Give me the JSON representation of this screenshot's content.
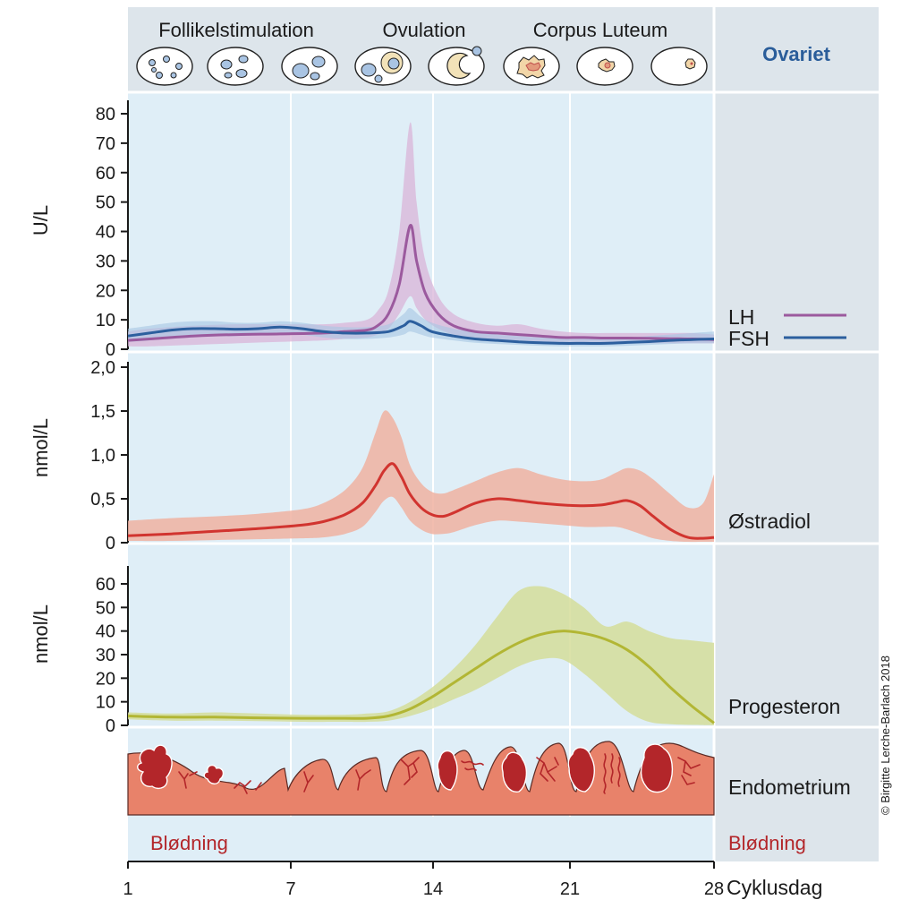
{
  "header": {
    "phases": [
      "Follikelstimulation",
      "Ovulation",
      "Corpus Luteum"
    ],
    "ovary_label": "Ovariet"
  },
  "colors": {
    "plot_bg": "#dfeef7",
    "side_bg": "#dde5eb",
    "lh": "#9b5a9e",
    "lh_band": "#d9b4d8",
    "fsh": "#2c5f9e",
    "fsh_band": "#a7c6e2",
    "estradiol": "#d1342f",
    "estradiol_band": "#f0b1a1",
    "progesterone": "#b2b634",
    "progesterone_band": "#d5dd9a",
    "endometrium": "#e8826a",
    "vessel": "#b3262a",
    "bleeding_text": "#b3262a",
    "ovary_text": "#2a5d9a"
  },
  "chart_data": [
    {
      "type": "line",
      "ylabel": "U/L",
      "ylim": [
        0,
        80
      ],
      "yticks": [
        "0",
        "10",
        "20",
        "30",
        "40",
        "50",
        "60",
        "70",
        "80"
      ],
      "xlim": [
        1,
        28
      ],
      "series": [
        {
          "name": "LH",
          "x": [
            1,
            2,
            4,
            6,
            8,
            10,
            11,
            12,
            12.5,
            13,
            13.5,
            14,
            14.3,
            14.7,
            15.3,
            16,
            17,
            18,
            19,
            20,
            21,
            22,
            23,
            24,
            25,
            26,
            27,
            28
          ],
          "y": [
            3,
            3.5,
            4.5,
            5,
            5.2,
            5.5,
            6,
            6.5,
            8,
            12,
            22,
            42,
            30,
            19,
            12,
            8,
            6,
            5.5,
            5,
            4.5,
            4,
            4,
            3.8,
            3.8,
            3.7,
            3.6,
            3.5,
            3.3
          ],
          "band_upper": [
            6,
            7,
            8,
            8.5,
            8.5,
            8.5,
            9,
            10,
            13,
            20,
            40,
            77,
            50,
            30,
            18,
            12,
            9,
            8,
            8.5,
            7,
            6,
            5.5,
            5.5,
            5.5,
            5.5,
            5.5,
            5.5,
            5
          ],
          "band_lower": [
            1,
            1,
            1.5,
            2,
            2.5,
            3,
            3.5,
            4,
            5,
            7,
            12,
            18,
            14,
            10,
            7,
            5,
            4,
            3,
            3,
            2.5,
            2,
            2,
            2,
            2,
            2,
            2,
            2,
            2
          ]
        },
        {
          "name": "FSH",
          "x": [
            1,
            2,
            3,
            4,
            5,
            6,
            7,
            8,
            9,
            10,
            11,
            12,
            13,
            13.7,
            14,
            14.5,
            15,
            16,
            17,
            18,
            19,
            20,
            21,
            22,
            23,
            24,
            25,
            26,
            27,
            28
          ],
          "y": [
            4.5,
            5.5,
            6.5,
            7,
            7,
            6.8,
            7,
            7.5,
            7,
            6,
            5.5,
            5.5,
            6,
            8,
            9.5,
            8,
            6,
            4.5,
            3.5,
            3,
            2.5,
            2.2,
            2,
            2,
            2,
            2.3,
            2.6,
            3,
            3.3,
            3.5
          ],
          "band_upper": [
            7,
            8,
            9,
            9.5,
            9.5,
            9,
            9,
            9.5,
            9,
            8,
            7.5,
            7.5,
            8.5,
            12,
            14,
            11,
            9,
            7,
            6,
            5,
            4.5,
            4,
            4,
            4,
            4,
            4,
            4.5,
            5,
            5.5,
            6
          ],
          "band_lower": [
            2.5,
            3,
            4,
            4.5,
            4.5,
            4.5,
            5,
            5.5,
            5,
            4,
            3.5,
            3.5,
            4,
            5,
            6,
            5,
            4,
            3,
            2.2,
            1.8,
            1.5,
            1.2,
            1,
            1,
            1,
            1.2,
            1.5,
            1.8,
            2,
            2
          ]
        }
      ]
    },
    {
      "type": "line",
      "ylabel": "nmol/L",
      "ylim": [
        0,
        2.2
      ],
      "yticks": [
        "0",
        "0,5",
        "1,0",
        "1,5",
        "2,0"
      ],
      "xlim": [
        1,
        28
      ],
      "series": [
        {
          "name": "Østradiol",
          "x": [
            1,
            3,
            5,
            7,
            9,
            10,
            11,
            11.8,
            12.4,
            12.8,
            13.2,
            13.6,
            14,
            14.5,
            15,
            15.5,
            16,
            17,
            18,
            19,
            20,
            21,
            22,
            22.8,
            23.5,
            24,
            24.6,
            25.2,
            26,
            26.8,
            27.5,
            28
          ],
          "y": [
            0.08,
            0.1,
            0.13,
            0.16,
            0.2,
            0.24,
            0.32,
            0.45,
            0.65,
            0.82,
            0.9,
            0.75,
            0.55,
            0.4,
            0.32,
            0.3,
            0.34,
            0.45,
            0.5,
            0.48,
            0.45,
            0.43,
            0.42,
            0.43,
            0.46,
            0.48,
            0.42,
            0.3,
            0.15,
            0.06,
            0.05,
            0.06
          ],
          "band_upper": [
            0.25,
            0.28,
            0.3,
            0.33,
            0.38,
            0.45,
            0.6,
            0.85,
            1.25,
            1.5,
            1.42,
            1.2,
            0.88,
            0.68,
            0.58,
            0.56,
            0.6,
            0.7,
            0.8,
            0.85,
            0.78,
            0.72,
            0.7,
            0.72,
            0.8,
            0.85,
            0.82,
            0.72,
            0.55,
            0.4,
            0.45,
            0.78
          ],
          "band_lower": [
            0.02,
            0.02,
            0.03,
            0.04,
            0.05,
            0.06,
            0.1,
            0.18,
            0.35,
            0.48,
            0.52,
            0.4,
            0.25,
            0.15,
            0.1,
            0.1,
            0.12,
            0.2,
            0.25,
            0.24,
            0.22,
            0.2,
            0.18,
            0.18,
            0.18,
            0.15,
            0.1,
            0.05,
            0.02,
            0.01,
            0.01,
            0.01
          ]
        }
      ]
    },
    {
      "type": "line",
      "ylabel": "nmol/L",
      "ylim": [
        0,
        65
      ],
      "yticks": [
        "0",
        "10",
        "20",
        "30",
        "40",
        "50",
        "60"
      ],
      "xlim": [
        1,
        28
      ],
      "series": [
        {
          "name": "Progesteron",
          "x": [
            1,
            3,
            5,
            7,
            9,
            11,
            12,
            13,
            14,
            15,
            16,
            17,
            18,
            19,
            20,
            21,
            22,
            23,
            24,
            25,
            26,
            27,
            28
          ],
          "y": [
            4,
            3.5,
            3.5,
            3.2,
            3,
            3,
            3,
            4,
            7,
            12,
            18,
            24,
            30,
            35,
            38.5,
            40,
            39,
            36.5,
            32,
            25,
            16,
            8,
            1
          ],
          "band_upper": [
            5.5,
            5,
            5.5,
            5,
            4.5,
            4.5,
            5,
            6,
            10,
            16,
            24,
            34,
            46,
            57,
            59,
            56,
            50,
            42,
            44,
            40,
            37,
            36,
            35
          ],
          "band_lower": [
            2.5,
            2,
            2,
            1.8,
            1.5,
            1.5,
            1.5,
            2,
            4,
            7,
            11,
            15,
            20,
            25,
            28,
            28,
            22,
            14,
            6,
            1.5,
            0.5,
            0.2,
            0
          ]
        }
      ]
    }
  ],
  "panels": {
    "lh_label": "LH",
    "fsh_label": "FSH",
    "estradiol_label": "Østradiol",
    "progesterone_label": "Progesteron",
    "endometrium_label": "Endometrium"
  },
  "footer": {
    "bleeding_left": "Blødning",
    "bleeding_right": "Blødning",
    "xticks": [
      "1",
      "7",
      "14",
      "21",
      "28"
    ],
    "xlabel": "Cyklusdag"
  },
  "credit": "© Birgitte Lerche-Barlach 2018"
}
